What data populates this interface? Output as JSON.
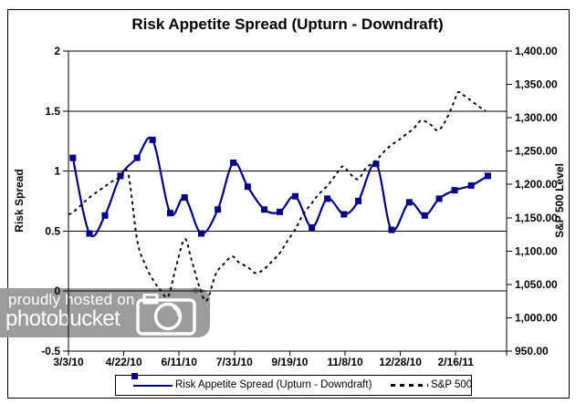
{
  "title": "Risk Appetite Spread (Upturn - Downdraft)",
  "watermark": {
    "line1": "proudly hosted on",
    "line2": "photobucket",
    "registered_mark": "®"
  },
  "legend": {
    "items": [
      {
        "label": "Risk Appetite Spread (Upturn - Downdraft)",
        "sample": "navy-line-square-marker"
      },
      {
        "label": "S&P 500",
        "sample": "black-dashed-line"
      }
    ]
  },
  "colors": {
    "risk_spread": "#000080",
    "sp500": "#000000",
    "axis": "#000000",
    "watermark_bg": "#989898",
    "watermark_text": "#ffffff",
    "background": "#ffffff"
  },
  "chart_data": {
    "type": "line",
    "title": "Risk Appetite Spread (Upturn - Downdraft)",
    "grid": "horizontal",
    "legend_position": "bottom",
    "x_axis": {
      "unit": "days since 3/3/10",
      "tick_labels": [
        "3/3/10",
        "4/22/10",
        "6/11/10",
        "7/31/10",
        "9/19/10",
        "11/8/10",
        "12/28/10",
        "2/16/11"
      ],
      "tick_days": [
        0,
        50,
        100,
        150,
        200,
        250,
        300,
        350
      ],
      "range_days": [
        0,
        396
      ]
    },
    "left_axis": {
      "title": "Risk Spread",
      "tick_labels": [
        "2",
        "1.5",
        "1",
        "0.5",
        "0",
        "-0.5"
      ],
      "ticks": [
        2,
        1.5,
        1,
        0.5,
        0,
        -0.5
      ],
      "range": [
        -0.5,
        2
      ]
    },
    "right_axis": {
      "title": "S&P 500 Level",
      "tick_labels": [
        "1,400.00",
        "1,350.00",
        "1,300.00",
        "1,250.00",
        "1,200.00",
        "1,150.00",
        "1,100.00",
        "1,050.00",
        "1,000.00",
        "950.00"
      ],
      "ticks": [
        1400,
        1350,
        1300,
        1250,
        1200,
        1150,
        1100,
        1050,
        1000,
        950
      ],
      "range": [
        950,
        1400
      ]
    },
    "series": [
      {
        "name": "Risk Appetite Spread (Upturn - Downdraft)",
        "axis": "left",
        "color": "#000080",
        "style": "solid-smoothed",
        "marker": "square",
        "points": [
          [
            4,
            1.11
          ],
          [
            19,
            0.48
          ],
          [
            33,
            0.63
          ],
          [
            47,
            0.96
          ],
          [
            62,
            1.11
          ],
          [
            76,
            1.26
          ],
          [
            92,
            0.65
          ],
          [
            105,
            0.78
          ],
          [
            120,
            0.48
          ],
          [
            135,
            0.68
          ],
          [
            149,
            1.07
          ],
          [
            162,
            0.87
          ],
          [
            177,
            0.68
          ],
          [
            191,
            0.66
          ],
          [
            205,
            0.79
          ],
          [
            220,
            0.53
          ],
          [
            234,
            0.77
          ],
          [
            249,
            0.64
          ],
          [
            262,
            0.75
          ],
          [
            278,
            1.06
          ],
          [
            292,
            0.51
          ],
          [
            308,
            0.74
          ],
          [
            322,
            0.63
          ],
          [
            335,
            0.77
          ],
          [
            349,
            0.84
          ],
          [
            364,
            0.88
          ],
          [
            379,
            0.96
          ]
        ]
      },
      {
        "name": "S&P 500",
        "axis": "right",
        "color": "#000000",
        "style": "dashed",
        "marker": "none",
        "points": [
          [
            0,
            1155
          ],
          [
            4,
            1158
          ],
          [
            12,
            1170
          ],
          [
            18,
            1179
          ],
          [
            26,
            1189
          ],
          [
            33,
            1197
          ],
          [
            40,
            1205
          ],
          [
            47,
            1211
          ],
          [
            54,
            1216
          ],
          [
            62,
            1117
          ],
          [
            69,
            1081
          ],
          [
            76,
            1058
          ],
          [
            83,
            1042
          ],
          [
            90,
            1032
          ],
          [
            97,
            1075
          ],
          [
            105,
            1118
          ],
          [
            111,
            1088
          ],
          [
            119,
            1043
          ],
          [
            125,
            1026
          ],
          [
            133,
            1065
          ],
          [
            140,
            1080
          ],
          [
            148,
            1092
          ],
          [
            154,
            1083
          ],
          [
            162,
            1076
          ],
          [
            169,
            1067
          ],
          [
            176,
            1072
          ],
          [
            183,
            1083
          ],
          [
            191,
            1097
          ],
          [
            197,
            1113
          ],
          [
            205,
            1133
          ],
          [
            212,
            1155
          ],
          [
            220,
            1172
          ],
          [
            226,
            1185
          ],
          [
            234,
            1198
          ],
          [
            241,
            1213
          ],
          [
            248,
            1227
          ],
          [
            255,
            1215
          ],
          [
            262,
            1208
          ],
          [
            269,
            1225
          ],
          [
            277,
            1234
          ],
          [
            284,
            1247
          ],
          [
            291,
            1258
          ],
          [
            298,
            1266
          ],
          [
            305,
            1275
          ],
          [
            312,
            1284
          ],
          [
            319,
            1296
          ],
          [
            327,
            1290
          ],
          [
            334,
            1281
          ],
          [
            341,
            1296
          ],
          [
            348,
            1322
          ],
          [
            352,
            1338
          ],
          [
            356,
            1335
          ],
          [
            362,
            1328
          ],
          [
            370,
            1318
          ],
          [
            377,
            1310
          ]
        ]
      }
    ]
  }
}
